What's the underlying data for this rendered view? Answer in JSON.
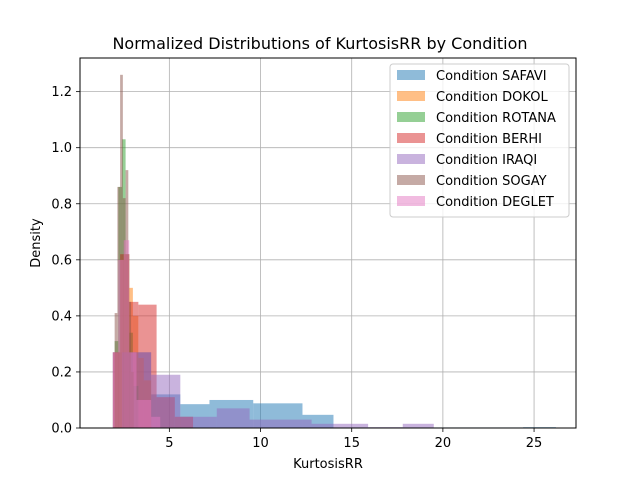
{
  "chart_data": {
    "type": "histogram",
    "title": "Normalized Distributions of KurtosisRR by Condition",
    "xlabel": "KurtosisRR",
    "ylabel": "Density",
    "xlim": [
      0.1,
      27.3
    ],
    "ylim": [
      0,
      1.32
    ],
    "xticks": [
      5,
      10,
      15,
      20,
      25
    ],
    "yticks": [
      0.0,
      0.2,
      0.4,
      0.6,
      0.8,
      1.0,
      1.2
    ],
    "grid": true,
    "legend_position": "top-right",
    "alpha": 0.5,
    "series": [
      {
        "name": "Condition SAFAVI",
        "color": "#1f77b4",
        "bins": [
          {
            "x0": 1.9,
            "x1": 4.0,
            "value": 0.27
          },
          {
            "x0": 4.0,
            "x1": 5.6,
            "value": 0.12
          },
          {
            "x0": 5.6,
            "x1": 7.2,
            "value": 0.085
          },
          {
            "x0": 7.2,
            "x1": 9.6,
            "value": 0.1
          },
          {
            "x0": 9.6,
            "x1": 12.3,
            "value": 0.088
          },
          {
            "x0": 12.3,
            "x1": 14.0,
            "value": 0.047
          },
          {
            "x0": 14.0,
            "x1": 24.4,
            "value": 0.002
          },
          {
            "x0": 24.4,
            "x1": 26.2,
            "value": 0.003
          }
        ]
      },
      {
        "name": "Condition DOKOL",
        "color": "#ff7f0e",
        "bins": [
          {
            "x0": 2.0,
            "x1": 2.3,
            "value": 0.27
          },
          {
            "x0": 2.3,
            "x1": 2.5,
            "value": 0.62
          },
          {
            "x0": 2.5,
            "x1": 2.8,
            "value": 0.62
          },
          {
            "x0": 2.8,
            "x1": 3.0,
            "value": 0.5
          },
          {
            "x0": 3.0,
            "x1": 3.3,
            "value": 0.4
          },
          {
            "x0": 3.3,
            "x1": 3.6,
            "value": 0.25
          },
          {
            "x0": 3.6,
            "x1": 4.0,
            "value": 0.17
          }
        ]
      },
      {
        "name": "Condition ROTANA",
        "color": "#2ca02c",
        "bins": [
          {
            "x0": 2.0,
            "x1": 2.2,
            "value": 0.31
          },
          {
            "x0": 2.2,
            "x1": 2.4,
            "value": 0.86
          },
          {
            "x0": 2.4,
            "x1": 2.6,
            "value": 1.03
          },
          {
            "x0": 2.6,
            "x1": 2.8,
            "value": 0.62
          },
          {
            "x0": 2.8,
            "x1": 3.0,
            "value": 0.34
          },
          {
            "x0": 3.0,
            "x1": 3.3,
            "value": 0.15
          }
        ]
      },
      {
        "name": "Condition BERHI",
        "color": "#d62728",
        "bins": [
          {
            "x0": 1.9,
            "x1": 2.3,
            "value": 0.27
          },
          {
            "x0": 2.3,
            "x1": 2.5,
            "value": 0.62
          },
          {
            "x0": 2.5,
            "x1": 2.8,
            "value": 0.62
          },
          {
            "x0": 2.8,
            "x1": 3.3,
            "value": 0.45
          },
          {
            "x0": 3.3,
            "x1": 4.3,
            "value": 0.44
          },
          {
            "x0": 4.3,
            "x1": 5.3,
            "value": 0.11
          },
          {
            "x0": 5.3,
            "x1": 6.3,
            "value": 0.04
          }
        ]
      },
      {
        "name": "Condition IRAQI",
        "color": "#9467bd",
        "bins": [
          {
            "x0": 2.4,
            "x1": 4.0,
            "value": 0.27
          },
          {
            "x0": 4.0,
            "x1": 5.6,
            "value": 0.19
          },
          {
            "x0": 5.6,
            "x1": 7.6,
            "value": 0.04
          },
          {
            "x0": 7.6,
            "x1": 9.4,
            "value": 0.07
          },
          {
            "x0": 9.4,
            "x1": 12.8,
            "value": 0.03
          },
          {
            "x0": 12.8,
            "x1": 15.9,
            "value": 0.015
          },
          {
            "x0": 15.9,
            "x1": 17.8,
            "value": 0.003
          },
          {
            "x0": 17.8,
            "x1": 19.5,
            "value": 0.015
          }
        ]
      },
      {
        "name": "Condition SOGAY",
        "color": "#8c564b",
        "bins": [
          {
            "x0": 2.0,
            "x1": 2.15,
            "value": 0.41
          },
          {
            "x0": 2.15,
            "x1": 2.3,
            "value": 0.86
          },
          {
            "x0": 2.3,
            "x1": 2.45,
            "value": 1.26
          },
          {
            "x0": 2.45,
            "x1": 2.6,
            "value": 0.82
          },
          {
            "x0": 2.6,
            "x1": 2.75,
            "value": 0.92
          },
          {
            "x0": 2.75,
            "x1": 2.9,
            "value": 0.45
          },
          {
            "x0": 2.9,
            "x1": 3.05,
            "value": 0.2
          }
        ]
      },
      {
        "name": "Condition DEGLET",
        "color": "#e377c2",
        "bins": [
          {
            "x0": 1.9,
            "x1": 2.2,
            "value": 0.27
          },
          {
            "x0": 2.2,
            "x1": 2.5,
            "value": 0.6
          },
          {
            "x0": 2.5,
            "x1": 2.8,
            "value": 0.67
          },
          {
            "x0": 2.8,
            "x1": 3.2,
            "value": 0.27
          },
          {
            "x0": 3.2,
            "x1": 4.0,
            "value": 0.1
          },
          {
            "x0": 4.0,
            "x1": 4.5,
            "value": 0.04
          }
        ]
      }
    ]
  }
}
